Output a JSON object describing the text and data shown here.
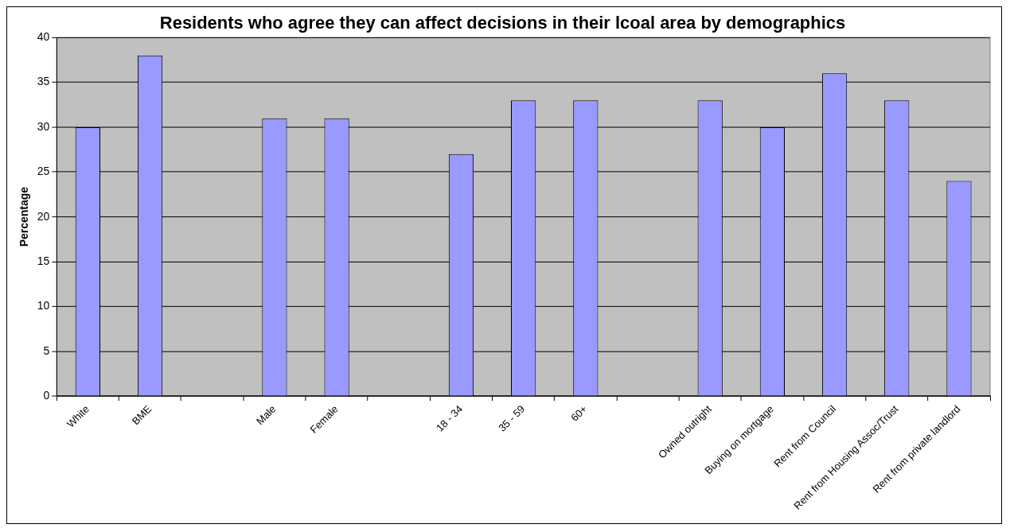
{
  "chart_data": {
    "type": "bar",
    "title": "Residents who agree they can affect decisions in their lcoal area by demographics",
    "ylabel": "Percentage",
    "categories": [
      "White",
      "BME",
      null,
      "Male",
      "Female",
      null,
      "18 - 34",
      "35 - 59",
      "60+",
      null,
      "Owned outright",
      "Buying on mortgage",
      "Rent from Council",
      "Rent from Housing Assoc/Trust",
      "Rent from private landlord"
    ],
    "values": [
      30,
      38,
      null,
      31,
      31,
      null,
      27,
      33,
      33,
      null,
      33,
      30,
      36,
      33,
      24
    ],
    "color": "#9999ff",
    "ylim": [
      0,
      40
    ],
    "yticks": [
      0,
      5,
      10,
      15,
      20,
      25,
      30,
      35,
      40
    ],
    "grid": "y",
    "legend": false
  }
}
